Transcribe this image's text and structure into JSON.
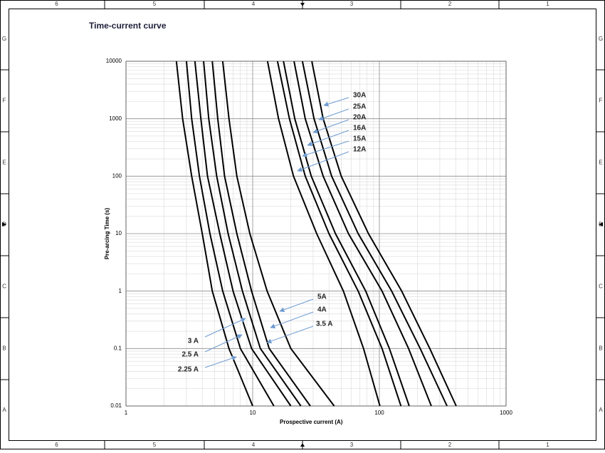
{
  "frame": {
    "columns": [
      "6",
      "5",
      "4",
      "3",
      "2",
      "1"
    ],
    "rows": [
      "G",
      "F",
      "E",
      "D",
      "C",
      "B",
      "A"
    ]
  },
  "chart_data": {
    "type": "line",
    "title": "Time-current curve",
    "x_label": "Prospective current (A)",
    "y_label": "Pre-arcing Time (s)",
    "x_scale": "log",
    "y_scale": "log",
    "xlim": [
      1,
      1000
    ],
    "ylim": [
      0.01,
      10000
    ],
    "xticks": [
      1,
      10,
      100,
      1000
    ],
    "yticks": [
      0.01,
      0.1,
      1,
      10,
      100,
      1000,
      10000
    ],
    "grid": "major and minor",
    "label_color": "#6f9bd1",
    "series": [
      {
        "name": "2.25 A",
        "color": "#000000",
        "x": [
          2.5,
          2.8,
          3.3,
          4.0,
          4.8,
          6.5,
          10
        ],
        "values": [
          10000,
          1000,
          100,
          10,
          1,
          0.1,
          0.01
        ]
      },
      {
        "name": "2.5 A",
        "color": "#000000",
        "x": [
          3.0,
          3.3,
          3.8,
          4.6,
          5.8,
          8.0,
          14.7
        ],
        "values": [
          10000,
          1000,
          100,
          10,
          1,
          0.1,
          0.01
        ]
      },
      {
        "name": "3 A",
        "color": "#000000",
        "x": [
          3.5,
          3.9,
          4.4,
          5.5,
          7.0,
          9.8,
          20
        ],
        "values": [
          10000,
          1000,
          100,
          10,
          1,
          0.1,
          0.01
        ]
      },
      {
        "name": "3.5 A",
        "color": "#000000",
        "x": [
          4.1,
          4.5,
          5.2,
          6.4,
          8.3,
          11.5,
          24
        ],
        "values": [
          10000,
          1000,
          100,
          10,
          1,
          0.1,
          0.01
        ]
      },
      {
        "name": "4A",
        "color": "#000000",
        "x": [
          4.8,
          5.3,
          6.0,
          7.5,
          9.8,
          13.5,
          28.5
        ],
        "values": [
          10000,
          1000,
          100,
          10,
          1,
          0.1,
          0.01
        ]
      },
      {
        "name": "5A",
        "color": "#000000",
        "x": [
          5.8,
          6.5,
          7.5,
          9.5,
          13,
          20,
          44
        ],
        "values": [
          10000,
          1000,
          100,
          10,
          1,
          0.1,
          0.01
        ]
      },
      {
        "name": "12A",
        "color": "#000000",
        "x": [
          13.1,
          16,
          21,
          32,
          52,
          75,
          101
        ],
        "values": [
          10000,
          1000,
          100,
          10,
          1,
          0.1,
          0.01
        ]
      },
      {
        "name": "15A",
        "color": "#000000",
        "x": [
          15.7,
          19.5,
          26,
          40,
          68,
          105,
          148
        ],
        "values": [
          10000,
          1000,
          100,
          10,
          1,
          0.1,
          0.01
        ]
      },
      {
        "name": "16A",
        "color": "#000000",
        "x": [
          17.5,
          21.5,
          29,
          45,
          78,
          120,
          172
        ],
        "values": [
          10000,
          1000,
          100,
          10,
          1,
          0.1,
          0.01
        ]
      },
      {
        "name": "20A",
        "color": "#000000",
        "x": [
          21.2,
          26,
          36,
          57,
          105,
          170,
          257
        ],
        "values": [
          10000,
          1000,
          100,
          10,
          1,
          0.1,
          0.01
        ]
      },
      {
        "name": "25A",
        "color": "#000000",
        "x": [
          24.7,
          30.5,
          42,
          68,
          125,
          210,
          342
        ],
        "values": [
          10000,
          1000,
          100,
          10,
          1,
          0.1,
          0.01
        ]
      },
      {
        "name": "30A",
        "color": "#000000",
        "x": [
          29.3,
          36,
          50,
          82,
          150,
          250,
          404
        ],
        "values": [
          10000,
          1000,
          100,
          10,
          1,
          0.1,
          0.01
        ]
      }
    ]
  }
}
